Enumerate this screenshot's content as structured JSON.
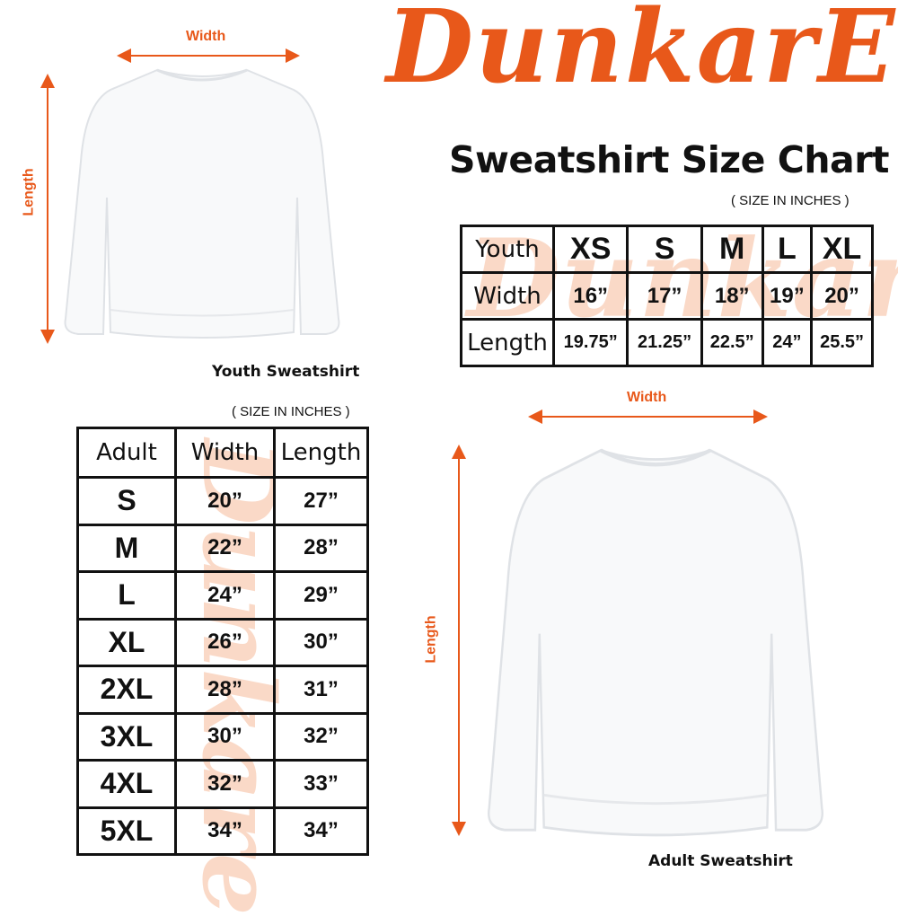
{
  "brand": {
    "logo_text": "DunkarE",
    "accent_color": "#e8581a"
  },
  "title": "Sweatshirt Size Chart",
  "units_note": "( SIZE IN INCHES )",
  "youth": {
    "image_caption": "Youth Sweatshirt",
    "width_label": "Width",
    "length_label": "Length",
    "table": {
      "header": [
        "Youth",
        "XS",
        "S",
        "M",
        "L",
        "XL"
      ],
      "rows": [
        [
          "Width",
          "16”",
          "17”",
          "18”",
          "19”",
          "20”"
        ],
        [
          "Length",
          "19.75”",
          "21.25”",
          "22.5”",
          "24”",
          "25.5”"
        ]
      ]
    }
  },
  "adult": {
    "image_caption": "Adult Sweatshirt",
    "width_label": "Width",
    "length_label": "Length",
    "table": {
      "header": [
        "Adult",
        "Width",
        "Length"
      ],
      "rows": [
        [
          "S",
          "20”",
          "27”"
        ],
        [
          "M",
          "22”",
          "28”"
        ],
        [
          "L",
          "24”",
          "29”"
        ],
        [
          "XL",
          "26”",
          "30”"
        ],
        [
          "2XL",
          "28”",
          "31”"
        ],
        [
          "3XL",
          "30”",
          "32”"
        ],
        [
          "4XL",
          "32”",
          "33”"
        ],
        [
          "5XL",
          "34”",
          "34”"
        ]
      ]
    }
  }
}
